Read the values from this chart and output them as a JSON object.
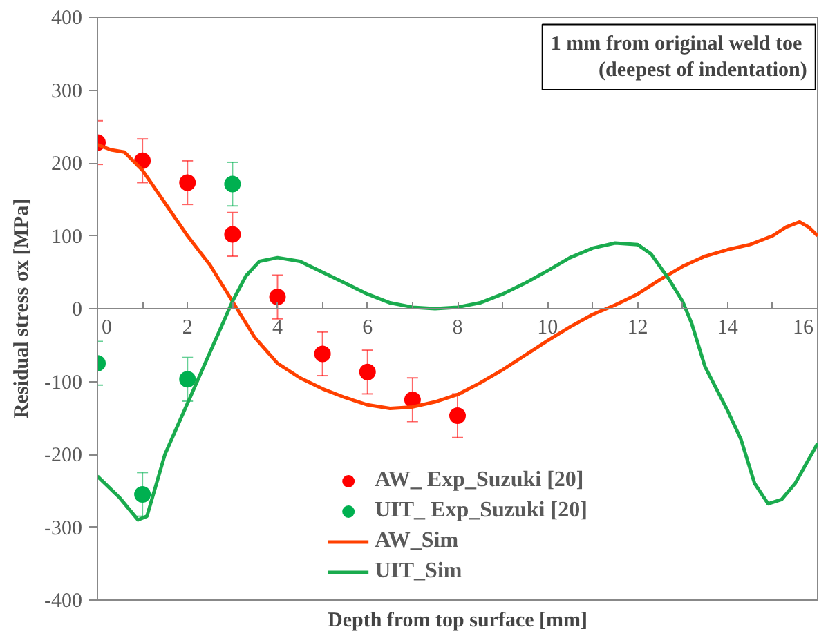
{
  "chart_data": {
    "type": "line",
    "xlabel": "Depth from top surface [mm]",
    "ylabel": "Residual stress σx [MPa]",
    "annotations": [
      "1 mm  from original weld toe\n(deepest of indentation)"
    ],
    "xlim": [
      0,
      16
    ],
    "ylim": [
      -400,
      400
    ],
    "xticks": [
      0,
      {
        "value": 1,
        "label": null
      },
      2,
      {
        "value": 3,
        "label": null
      },
      4,
      {
        "value": 5,
        "label": null
      },
      6,
      {
        "value": 7,
        "label": null
      },
      8,
      {
        "value": 9,
        "label": null
      },
      10,
      {
        "value": 11,
        "label": null
      },
      12,
      {
        "value": 13,
        "label": null
      },
      14,
      {
        "value": 15,
        "label": null
      },
      16
    ],
    "yticks": [
      -400,
      -300,
      -200,
      -100,
      0,
      100,
      200,
      300,
      400
    ],
    "grid": false,
    "legend": "bottom",
    "series": [
      {
        "name": "AW_ Exp_Suzuki [20]",
        "type": "scatter",
        "marker": "circle",
        "color": "#ff0000",
        "x": [
          0,
          1,
          2,
          3,
          4,
          5,
          6,
          7,
          8
        ],
        "values": [
          228,
          203,
          173,
          102,
          16,
          -62,
          -87,
          -125,
          -147
        ],
        "errors": [
          30,
          30,
          30,
          30,
          30,
          30,
          30,
          30,
          30
        ]
      },
      {
        "name": "UIT_ Exp_Suzuki [20]",
        "type": "scatter",
        "marker": "circle",
        "color": "#00b050",
        "x": [
          0,
          1,
          2,
          3
        ],
        "values": [
          -75,
          -255,
          -97,
          171
        ],
        "errors": [
          30,
          30,
          30,
          30
        ]
      },
      {
        "name": "AW_Sim",
        "color": "#ff4000",
        "x": [
          0,
          0.3,
          0.6,
          1,
          1.5,
          2,
          2.5,
          3,
          3.5,
          4,
          4.5,
          5,
          5.5,
          6,
          6.5,
          7,
          7.5,
          8,
          8.5,
          9,
          9.5,
          10,
          10.5,
          11,
          11.5,
          12,
          12.5,
          13,
          13.5,
          14,
          14.5,
          15,
          15.3,
          15.6,
          15.8,
          16
        ],
        "values": [
          225,
          218,
          215,
          190,
          145,
          100,
          60,
          10,
          -40,
          -75,
          -95,
          -110,
          -122,
          -132,
          -137,
          -135,
          -128,
          -118,
          -102,
          -84,
          -64,
          -44,
          -25,
          -8,
          5,
          20,
          40,
          58,
          72,
          81,
          88,
          100,
          112,
          119,
          112,
          100
        ]
      },
      {
        "name": "UIT_Sim",
        "color": "#1aab4e",
        "x": [
          0,
          0.5,
          0.9,
          1.1,
          1.5,
          2,
          2.5,
          3,
          3.3,
          3.6,
          4,
          4.5,
          5,
          5.5,
          6,
          6.5,
          7,
          7.5,
          8,
          8.5,
          9,
          9.5,
          10,
          10.5,
          11,
          11.5,
          12,
          12.3,
          12.7,
          13,
          13.2,
          13.5,
          14,
          14.3,
          14.6,
          14.9,
          15.2,
          15.5,
          16
        ],
        "values": [
          -230,
          -260,
          -290,
          -285,
          -200,
          -130,
          -60,
          10,
          45,
          65,
          70,
          65,
          50,
          35,
          20,
          8,
          2,
          0,
          2,
          8,
          20,
          35,
          52,
          70,
          83,
          90,
          88,
          75,
          40,
          10,
          -20,
          -80,
          -140,
          -180,
          -240,
          -268,
          -262,
          -240,
          -185
        ]
      }
    ]
  }
}
